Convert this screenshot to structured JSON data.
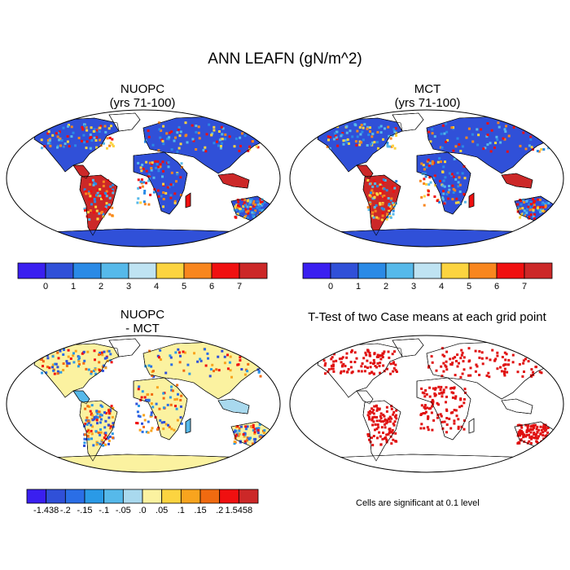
{
  "figure": {
    "title": "ANN LEAFN (gN/m^2)"
  },
  "panels": [
    {
      "id": "nuopc",
      "title_line1": "NUOPC",
      "title_line2": "(yrs 71-100)"
    },
    {
      "id": "mct",
      "title_line1": "MCT",
      "title_line2": "(yrs 71-100)"
    },
    {
      "id": "diff",
      "title_line1": "NUOPC",
      "title_line2": "- MCT"
    },
    {
      "id": "ttest",
      "title_line1": "T-Test of two Case means at each grid point",
      "title_line2": ""
    }
  ],
  "colorbar_main": {
    "colors": [
      "#3a1ff0",
      "#3050d8",
      "#2a8ae6",
      "#56b9ea",
      "#bfe3f2",
      "#fcd440",
      "#f8861e",
      "#f01010",
      "#cc2828"
    ],
    "labels": [
      "0",
      "1",
      "2",
      "3",
      "4",
      "5",
      "6",
      "7"
    ]
  },
  "colorbar_diff": {
    "colors": [
      "#3a1ff0",
      "#3050d8",
      "#2a6ee6",
      "#2a9ae6",
      "#56b9ea",
      "#a9d9ee",
      "#fbf2a0",
      "#fcd440",
      "#f8a41e",
      "#f06a10",
      "#f01010",
      "#cc2828"
    ],
    "labels": [
      "-1.438",
      "-.2",
      "-.15",
      "-.1",
      "-.05",
      ".0",
      ".05",
      ".1",
      ".15",
      ".2",
      "1.5458"
    ]
  },
  "significance_note": "Cells are significant at 0.1 level",
  "map_colors": {
    "ocean": "#ffffff",
    "land_low": "#3050d8",
    "tropics_high": "#cc2828",
    "diff_neutral": "#fbf2a0",
    "signif": "#e01010"
  }
}
